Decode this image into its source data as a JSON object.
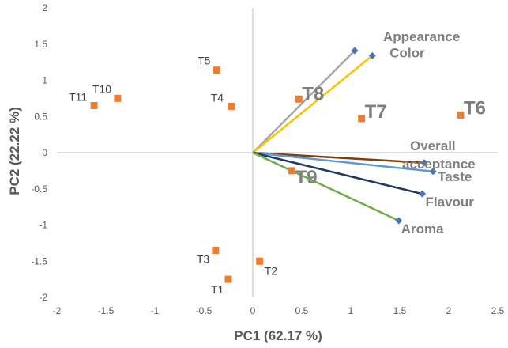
{
  "chart_data": {
    "type": "scatter",
    "title": "",
    "xlabel": "PC1 (62.17 %)",
    "ylabel": "PC2 (22.22 %)",
    "xlim": [
      -2,
      2.5
    ],
    "ylim": [
      -2,
      2
    ],
    "xticks": [
      "-2",
      "-1.5",
      "-1",
      "-0.5",
      "0",
      "0.5",
      "1",
      "1.5",
      "2",
      "2.5"
    ],
    "yticks": [
      "2",
      "1.5",
      "1",
      "0.5",
      "0",
      "-0.5",
      "-1",
      "-1.5",
      "-2"
    ],
    "grid": false,
    "legend": "none",
    "loadings": [
      {
        "name": "Appearance",
        "x": 1.04,
        "y": 1.41,
        "color": "#a5a5a5"
      },
      {
        "name": "Color",
        "x": 1.22,
        "y": 1.34,
        "color": "#ffc000"
      },
      {
        "name": "Overall acceptance",
        "x": 1.75,
        "y": -0.14,
        "color": "#843c0c"
      },
      {
        "name": "Taste",
        "x": 1.84,
        "y": -0.26,
        "color": "#5b9bd5"
      },
      {
        "name": "Flavour",
        "x": 1.73,
        "y": -0.57,
        "color": "#203864"
      },
      {
        "name": "Aroma",
        "x": 1.49,
        "y": -0.94,
        "color": "#70ad47"
      }
    ],
    "observations": [
      {
        "name": "T1",
        "x": -0.25,
        "y": -1.75
      },
      {
        "name": "T2",
        "x": 0.07,
        "y": -1.5
      },
      {
        "name": "T3",
        "x": -0.38,
        "y": -1.35
      },
      {
        "name": "T4",
        "x": -0.22,
        "y": 0.64
      },
      {
        "name": "T5",
        "x": -0.37,
        "y": 1.14
      },
      {
        "name": "T6",
        "x": 2.12,
        "y": 0.52
      },
      {
        "name": "T7",
        "x": 1.11,
        "y": 0.47
      },
      {
        "name": "T8",
        "x": 0.47,
        "y": 0.74
      },
      {
        "name": "T9",
        "x": 0.4,
        "y": -0.25
      },
      {
        "name": "T10",
        "x": -1.38,
        "y": 0.75
      },
      {
        "name": "T11",
        "x": -1.62,
        "y": 0.65
      }
    ],
    "colors": {
      "observation_marker": "#ed7d31",
      "loading_marker": "#4472c4",
      "axis": "#bfbfbf"
    }
  }
}
